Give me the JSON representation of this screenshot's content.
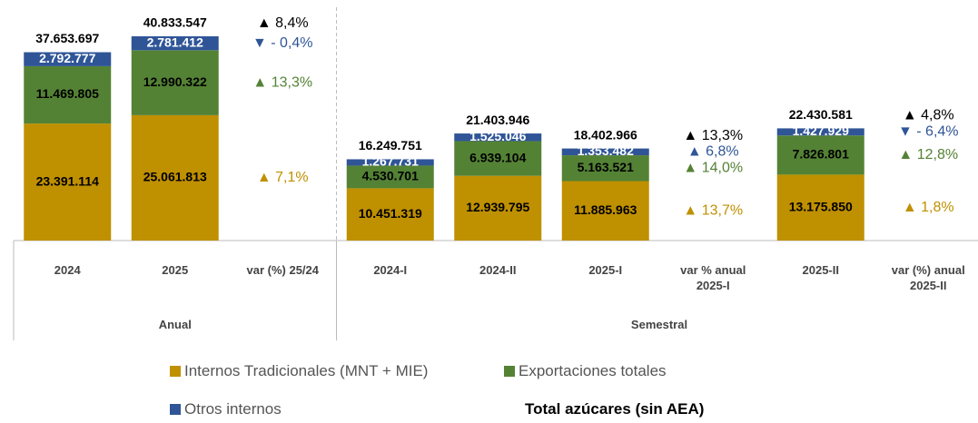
{
  "chart_data": {
    "type": "bar",
    "stacked": true,
    "categories": [
      "2024",
      "2025",
      "var (%) 25/24",
      "2024-I",
      "2024-II",
      "2025-I",
      "var % anual 2025-I",
      "2025-II",
      "var (%) anual 2025-II"
    ],
    "groups": [
      {
        "label": "Anual",
        "size": 3
      },
      {
        "label": "Semestral",
        "size": 6
      }
    ],
    "series": [
      {
        "name": "Internos Tradicionales (MNT + MIE)",
        "color": "#bf9000",
        "values": [
          23391114,
          25061813,
          null,
          10451319,
          12939795,
          11885963,
          null,
          13175850,
          null
        ],
        "value_labels": [
          "23.391.114",
          "25.061.813",
          null,
          "10.451.319",
          "12.939.795",
          "11.885.963",
          null,
          "13.175.850",
          null
        ],
        "changes": [
          null,
          null,
          7.1,
          null,
          null,
          null,
          13.7,
          null,
          1.8
        ],
        "change_labels": [
          null,
          null,
          "▲ 7,1%",
          null,
          null,
          null,
          "▲ 13,7%",
          null,
          "▲ 1,8%"
        ]
      },
      {
        "name": "Exportaciones totales",
        "color": "#548235",
        "values": [
          11469805,
          12990322,
          null,
          4530701,
          6939104,
          5163521,
          null,
          7826801,
          null
        ],
        "value_labels": [
          "11.469.805",
          "12.990.322",
          null,
          "4.530.701",
          "6.939.104",
          "5.163.521",
          null,
          "7.826.801",
          null
        ],
        "changes": [
          null,
          null,
          13.3,
          null,
          null,
          null,
          14.0,
          null,
          12.8
        ],
        "change_labels": [
          null,
          null,
          "▲ 13,3%",
          null,
          null,
          null,
          "▲ 14,0%",
          null,
          "▲ 12,8%"
        ]
      },
      {
        "name": "Otros internos",
        "color": "#2f5597",
        "values": [
          2792777,
          2781412,
          null,
          1267731,
          1525046,
          1353482,
          null,
          1427929,
          null
        ],
        "value_labels": [
          "2.792.777",
          "2.781.412",
          null,
          "1.267.731",
          "1.525.046",
          "1.353.482",
          null,
          "1.427.929",
          null
        ],
        "changes": [
          null,
          null,
          -0.4,
          null,
          null,
          null,
          6.8,
          null,
          -6.4
        ],
        "change_labels": [
          null,
          null,
          "▼ - 0,4%",
          null,
          null,
          null,
          "▲ 6,8%",
          null,
          "▼ - 6,4%"
        ]
      }
    ],
    "totals": {
      "name": "Total azúcares (sin AEA)",
      "values": [
        37653697,
        40833547,
        null,
        16249751,
        21403946,
        18402966,
        null,
        22430581,
        null
      ],
      "value_labels": [
        "37.653.697",
        "40.833.547",
        null,
        "16.249.751",
        "21.403.946",
        "18.402.966",
        null,
        "22.430.581",
        null
      ],
      "changes": [
        null,
        null,
        8.4,
        null,
        null,
        null,
        13.3,
        null,
        4.8
      ],
      "change_labels": [
        null,
        null,
        "▲ 8,4%",
        null,
        null,
        null,
        "▲ 13,3%",
        null,
        "▲ 4,8%"
      ]
    }
  }
}
